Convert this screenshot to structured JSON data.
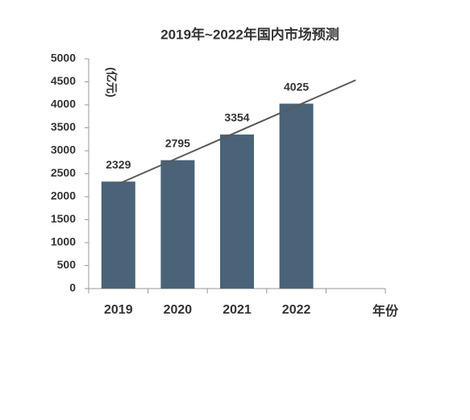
{
  "chart_data": {
    "type": "bar",
    "title": "2019年~2022年国内市场预测",
    "y_label": "(亿元)",
    "x_label": "年份",
    "categories": [
      "2019",
      "2020",
      "2021",
      "2022",
      null
    ],
    "values": [
      2329,
      2795,
      3354,
      4025,
      null
    ],
    "color": "#4a6378",
    "trendline": "linear",
    "trendline_color": "#595959",
    "ylim": [
      0,
      5000
    ],
    "yticks": [
      0,
      500,
      1000,
      1500,
      2000,
      2500,
      3000,
      3500,
      4000,
      4500,
      5000
    ]
  }
}
